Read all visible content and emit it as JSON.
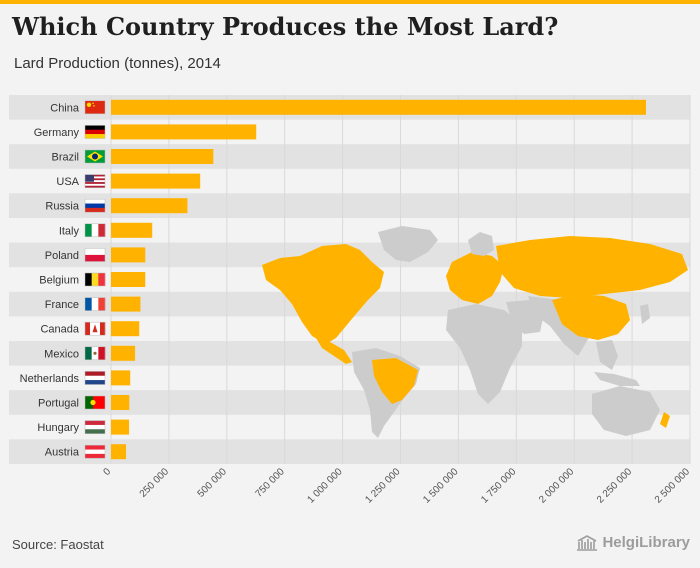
{
  "header": {
    "title": "Which Country Produces the Most Lard?",
    "subtitle": "Lard Production (tonnes), 2014"
  },
  "footer": {
    "source": "Source: Faostat",
    "brand": "HelgiLibrary"
  },
  "colors": {
    "bar": "#ffb300",
    "accent": "#ffb300",
    "row_band": "#e2e2e2",
    "map_land": "#cccccc",
    "map_highlight": "#ffb300"
  },
  "map": {
    "highlighted_countries": [
      "USA",
      "Canada",
      "Mexico",
      "Brazil",
      "Russia",
      "China",
      "Europe"
    ]
  },
  "chart_data": {
    "type": "bar",
    "orientation": "horizontal",
    "title": "Which Country Produces the Most Lard?",
    "subtitle": "Lard Production (tonnes), 2014",
    "xlabel": "",
    "ylabel": "",
    "xlim": [
      0,
      2500000
    ],
    "ticks": [
      0,
      250000,
      500000,
      750000,
      1000000,
      1250000,
      1500000,
      1750000,
      2000000,
      2250000,
      2500000
    ],
    "tick_labels": [
      "0",
      "250 000",
      "500 000",
      "750 000",
      "1 000 000",
      "1 250 000",
      "1 500 000",
      "1 750 000",
      "2 000 000",
      "2 250 000",
      "2 500 000"
    ],
    "grid": true,
    "categories": [
      "China",
      "Germany",
      "Brazil",
      "USA",
      "Russia",
      "Italy",
      "Poland",
      "Belgium",
      "France",
      "Canada",
      "Mexico",
      "Netherlands",
      "Portugal",
      "Hungary",
      "Austria"
    ],
    "flags": [
      "china-flag",
      "germany-flag",
      "brazil-flag",
      "usa-flag",
      "russia-flag",
      "italy-flag",
      "poland-flag",
      "belgium-flag",
      "france-flag",
      "canada-flag",
      "mexico-flag",
      "netherlands-flag",
      "portugal-flag",
      "hungary-flag",
      "austria-flag"
    ],
    "values": [
      2310000,
      627000,
      442000,
      385000,
      330000,
      178000,
      148000,
      148000,
      127000,
      122000,
      104000,
      83000,
      79000,
      78000,
      65000
    ]
  }
}
